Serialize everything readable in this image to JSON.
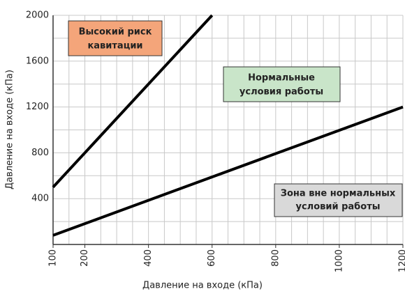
{
  "chart_data": {
    "type": "line",
    "xlabel": "Давление на входе (кПа)",
    "ylabel": "Давление на входе (кПа)",
    "xlim": [
      100,
      1200
    ],
    "ylim": [
      0,
      2000
    ],
    "xticks": [
      100,
      200,
      400,
      600,
      800,
      1000,
      1200
    ],
    "yticks": [
      400,
      800,
      1200,
      1600,
      2000
    ],
    "xminor_ticks": [
      150,
      250,
      300,
      350,
      450,
      500,
      550,
      650,
      700,
      750,
      850,
      900,
      950,
      1050,
      1100,
      1150
    ],
    "yminor_ticks": [
      200,
      600,
      1000,
      1400,
      1800
    ],
    "grid": true,
    "series": [
      {
        "color": "#000000",
        "x": [
          100,
          600
        ],
        "values": [
          500,
          2000
        ]
      },
      {
        "color": "#000000",
        "x": [
          100,
          1200
        ],
        "values": [
          80,
          1200
        ]
      }
    ],
    "annotations": [
      {
        "lines": [
          "Высокий риск",
          "кавитации"
        ],
        "color": "#f4a57a"
      },
      {
        "lines": [
          "Нормальные",
          "условия работы"
        ],
        "color": "#c9e5c9"
      },
      {
        "lines": [
          "Зона вне нормальных",
          "условий работы"
        ],
        "color": "#d9d9d9"
      }
    ]
  }
}
